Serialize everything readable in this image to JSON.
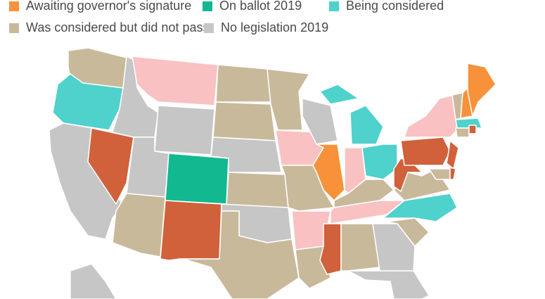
{
  "legend": {
    "items": [
      {
        "label": "Awaiting governor's signature",
        "color": "#f7923a"
      },
      {
        "label": "On ballot 2019",
        "color": "#12b88f"
      },
      {
        "label": "Being considered",
        "color": "#4fd1cc"
      },
      {
        "label": "Was considered but did not pass",
        "color": "#c9b99b"
      },
      {
        "label": "No legislation 2019",
        "color": "#c6c6c6"
      }
    ]
  }
}
